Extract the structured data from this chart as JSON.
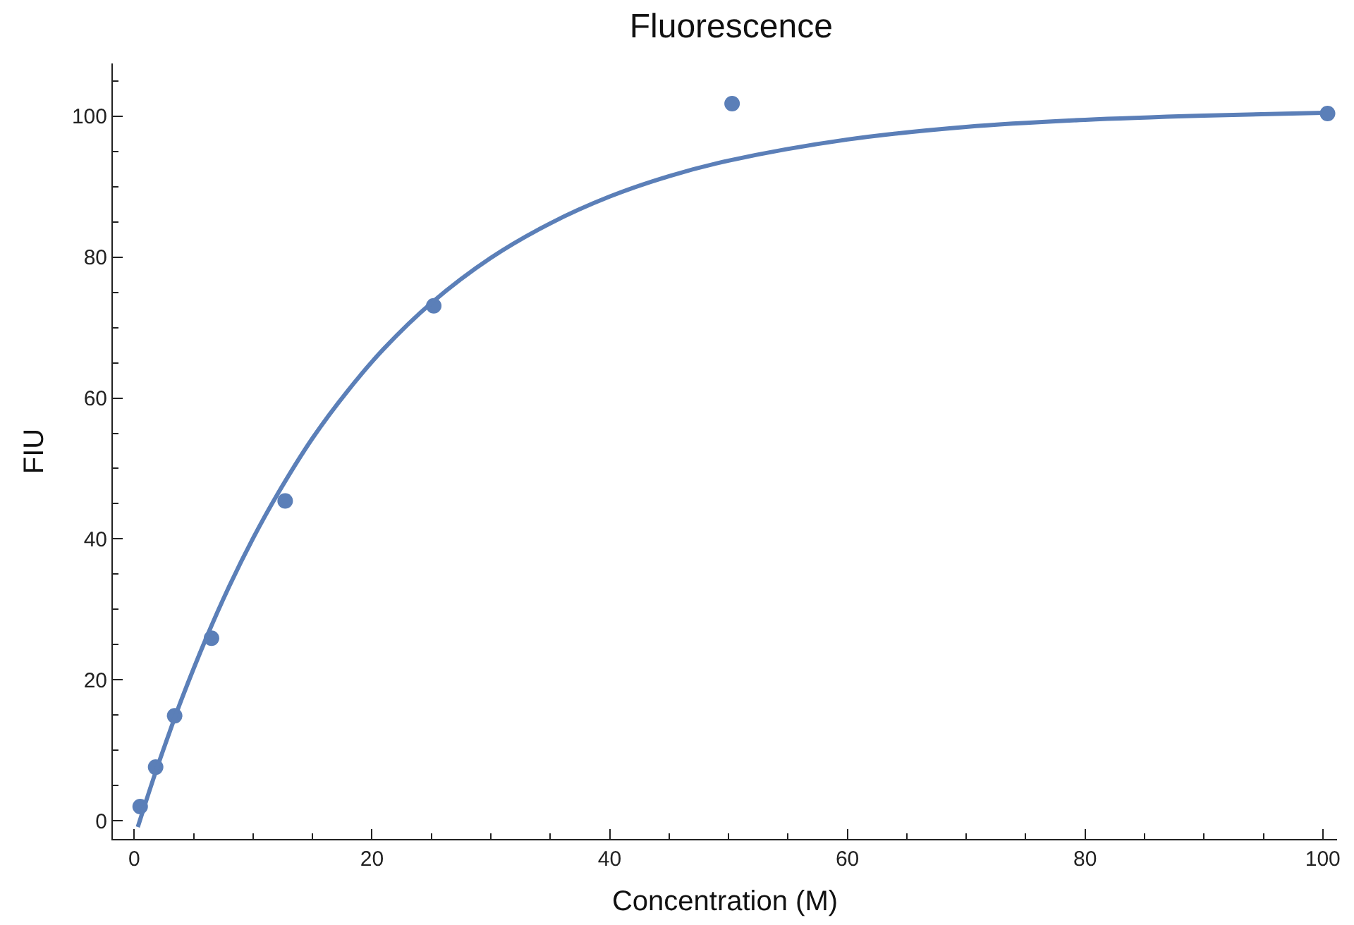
{
  "chart_data": {
    "type": "scatter",
    "title": "Fluorescence",
    "xlabel": "Concentration (M)",
    "ylabel": "FIU",
    "x": [
      0.5,
      1.8,
      3.4,
      6.5,
      12.7,
      25.2,
      50.3,
      100.4
    ],
    "series": [
      {
        "color": "#5b7fb8",
        "marker": "circle",
        "values": [
          2.0,
          7.6,
          14.9,
          25.9,
          45.4,
          73.1,
          101.8,
          100.4
        ]
      },
      {
        "type": "line",
        "color": "#5b7fb8",
        "marker": "none",
        "line_style": "solid",
        "x": [
          0.3,
          1,
          2,
          3,
          4,
          6,
          8,
          10,
          12,
          15,
          18,
          21,
          25,
          30,
          35,
          40,
          45,
          50,
          60,
          70,
          80,
          90,
          100
        ],
        "values": [
          -0.9,
          2.8,
          7.9,
          12.7,
          17.3,
          25.7,
          33.3,
          40.1,
          46.2,
          54.3,
          61.1,
          67.0,
          73.5,
          79.9,
          84.8,
          88.6,
          91.5,
          93.7,
          96.7,
          98.5,
          99.5,
          100.1,
          100.5
        ]
      }
    ],
    "xlim": [
      -1.8,
      101.2
    ],
    "ylim": [
      -2.6,
      107.5
    ],
    "xticks": [
      0,
      20,
      40,
      60,
      80,
      100
    ],
    "yticks": [
      0,
      20,
      40,
      60,
      80,
      100
    ]
  }
}
